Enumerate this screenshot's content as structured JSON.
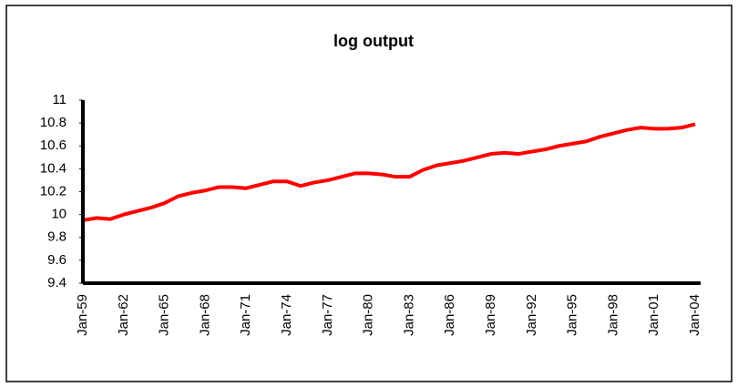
{
  "chart_data": {
    "type": "line",
    "title": "log output",
    "categories": [
      "Jan-59",
      null,
      null,
      "Jan-62",
      null,
      null,
      "Jan-65",
      null,
      null,
      "Jan-68",
      null,
      null,
      "Jan-71",
      null,
      null,
      "Jan-74",
      null,
      null,
      "Jan-77",
      null,
      null,
      "Jan-80",
      null,
      null,
      "Jan-83",
      null,
      null,
      "Jan-86",
      null,
      null,
      "Jan-89",
      null,
      null,
      "Jan-92",
      null,
      null,
      "Jan-95",
      null,
      null,
      "Jan-98",
      null,
      null,
      "Jan-01",
      null,
      null,
      "Jan-04"
    ],
    "series": [
      {
        "name": "log output",
        "color": "#ff0000",
        "values": [
          9.95,
          9.97,
          9.96,
          10.0,
          10.03,
          10.06,
          10.1,
          10.16,
          10.19,
          10.21,
          10.24,
          10.24,
          10.23,
          10.26,
          10.29,
          10.29,
          10.25,
          10.28,
          10.3,
          10.33,
          10.36,
          10.36,
          10.35,
          10.33,
          10.33,
          10.39,
          10.43,
          10.45,
          10.47,
          10.5,
          10.53,
          10.54,
          10.53,
          10.55,
          10.57,
          10.6,
          10.62,
          10.64,
          10.68,
          10.71,
          10.74,
          10.76,
          10.75,
          10.75,
          10.76,
          10.79
        ]
      }
    ],
    "ylim": [
      9.4,
      11
    ],
    "yticks": [
      9.4,
      9.6,
      9.8,
      10,
      10.2,
      10.4,
      10.6,
      10.8,
      11
    ],
    "grid": false,
    "legend": false
  }
}
